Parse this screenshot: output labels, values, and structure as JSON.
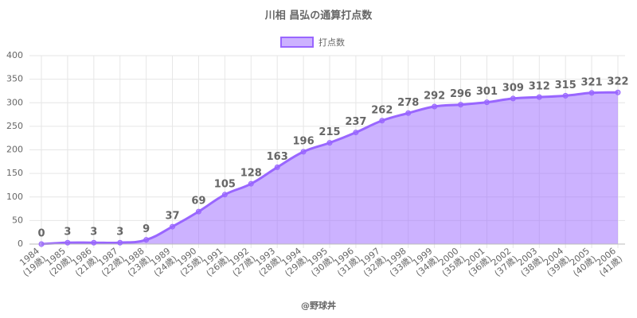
{
  "chart_data": {
    "type": "area",
    "title": "川相 昌弘の通算打点数",
    "footer": "@野球丼",
    "categories": [
      [
        "1984",
        "(19歳)"
      ],
      [
        "1985",
        "(20歳)"
      ],
      [
        "1986",
        "(21歳)"
      ],
      [
        "1987",
        "(22歳)"
      ],
      [
        "1988",
        "(23歳)"
      ],
      [
        "1989",
        "(24歳)"
      ],
      [
        "1990",
        "(25歳)"
      ],
      [
        "1991",
        "(26歳)"
      ],
      [
        "1992",
        "(27歳)"
      ],
      [
        "1993",
        "(28歳)"
      ],
      [
        "1994",
        "(29歳)"
      ],
      [
        "1995",
        "(30歳)"
      ],
      [
        "1996",
        "(31歳)"
      ],
      [
        "1997",
        "(32歳)"
      ],
      [
        "1998",
        "(33歳)"
      ],
      [
        "1999",
        "(34歳)"
      ],
      [
        "2000",
        "(35歳)"
      ],
      [
        "2001",
        "(36歳)"
      ],
      [
        "2002",
        "(37歳)"
      ],
      [
        "2003",
        "(38歳)"
      ],
      [
        "2004",
        "(39歳)"
      ],
      [
        "2005",
        "(40歳)"
      ],
      [
        "2006",
        "(41歳)"
      ]
    ],
    "series": [
      {
        "name": "打点数",
        "color": "#9966ff",
        "values": [
          0,
          3,
          3,
          3,
          9,
          37,
          69,
          105,
          128,
          163,
          196,
          215,
          237,
          262,
          278,
          292,
          296,
          301,
          309,
          312,
          315,
          321,
          322
        ]
      }
    ],
    "ylim": [
      0,
      400
    ],
    "yticks": [
      0,
      50,
      100,
      150,
      200,
      250,
      300,
      350,
      400
    ],
    "grid": true,
    "legend": "top"
  }
}
